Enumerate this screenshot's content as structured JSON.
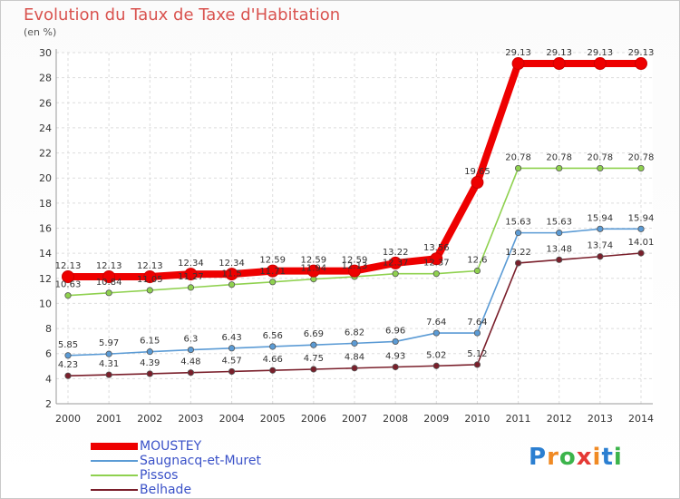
{
  "header": {
    "title": "Evolution du Taux de Taxe d'Habitation",
    "unit": "(en %)"
  },
  "chart_data": {
    "type": "line",
    "title": "Evolution du Taux de Taxe d'Habitation",
    "ylabel": "(en %)",
    "xlabel": "",
    "x": [
      "2000",
      "2001",
      "2002",
      "2003",
      "2004",
      "2005",
      "2006",
      "2007",
      "2008",
      "2009",
      "2010",
      "2011",
      "2012",
      "2013",
      "2014"
    ],
    "ylim": [
      2,
      30
    ],
    "yticks": [
      2,
      4,
      6,
      8,
      10,
      12,
      14,
      16,
      18,
      20,
      22,
      24,
      26,
      28,
      30
    ],
    "grid": true,
    "legend_position": "bottom-left",
    "series": [
      {
        "name": "MOUSTEY",
        "color": "#ee0000",
        "values": [
          12.13,
          12.13,
          12.13,
          12.34,
          12.34,
          12.59,
          12.59,
          12.59,
          13.22,
          13.56,
          19.65,
          29.13,
          29.13,
          29.13,
          29.13
        ],
        "labels": [
          "12.13",
          "12.13",
          "12.13",
          "12.34",
          "12.34",
          "12.59",
          "12.59",
          "12.59",
          "13.22",
          "13.56",
          "19.65",
          "29.13",
          "29.13",
          "29.13",
          "29.13"
        ]
      },
      {
        "name": "Saugnacq-et-Muret",
        "color": "#5b9bd5",
        "values": [
          5.85,
          5.97,
          6.15,
          6.3,
          6.43,
          6.56,
          6.69,
          6.82,
          6.96,
          7.64,
          7.64,
          15.63,
          15.63,
          15.94,
          15.94
        ],
        "labels": [
          "5.85",
          "5.97",
          "6.15",
          "6.3",
          "6.43",
          "6.56",
          "6.69",
          "6.82",
          "6.96",
          "7.64",
          "7.64",
          "15.63",
          "15.63",
          "15.94",
          "15.94"
        ]
      },
      {
        "name": "Pissos",
        "color": "#8fd14f",
        "values": [
          10.63,
          10.84,
          11.05,
          11.27,
          11.5,
          11.71,
          11.94,
          12.13,
          12.37,
          12.37,
          12.6,
          20.78,
          20.78,
          20.78,
          20.78
        ],
        "labels": [
          "10.63",
          "10.84",
          "11.05",
          "11.27",
          "11.5",
          "11.71",
          "11.94",
          "12.13",
          "12.37",
          "12.37",
          "12.6",
          "20.78",
          "20.78",
          "20.78",
          "20.78"
        ]
      },
      {
        "name": "Belhade",
        "color": "#7a1f2b",
        "values": [
          4.23,
          4.31,
          4.39,
          4.48,
          4.57,
          4.66,
          4.75,
          4.84,
          4.93,
          5.02,
          5.12,
          13.22,
          13.48,
          13.74,
          14.01
        ],
        "labels": [
          "4.23",
          "4.31",
          "4.39",
          "4.48",
          "4.57",
          "4.66",
          "4.75",
          "4.84",
          "4.93",
          "5.02",
          "5.12",
          "13.22",
          "13.48",
          "13.74",
          "14.01"
        ]
      }
    ]
  },
  "legend": {
    "items": [
      {
        "label": "MOUSTEY",
        "color": "#ee0000"
      },
      {
        "label": "Saugnacq-et-Muret",
        "color": "#5b9bd5"
      },
      {
        "label": "Pissos",
        "color": "#8fd14f"
      },
      {
        "label": "Belhade",
        "color": "#7a1f2b"
      }
    ]
  },
  "logo": {
    "text": "Proxiti",
    "colors": [
      "#2b7fd1",
      "#f08a24",
      "#3cb44b",
      "#e53935",
      "#f08a24",
      "#2b7fd1",
      "#3cb44b"
    ]
  }
}
